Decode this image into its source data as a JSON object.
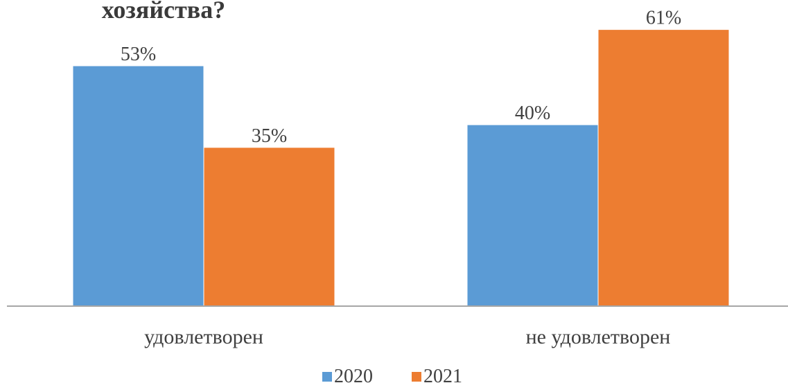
{
  "chart_data": {
    "type": "bar",
    "title": "хозяйства?",
    "categories": [
      "удовлетворен",
      "не удовлетворен"
    ],
    "series": [
      {
        "name": "2020",
        "values": [
          53,
          40
        ],
        "labels": [
          "53%",
          "40%"
        ],
        "color": "#5b9bd5"
      },
      {
        "name": "2021",
        "values": [
          35,
          61
        ],
        "labels": [
          "35%",
          "61%"
        ],
        "color": "#ed7d31"
      }
    ],
    "unit": "%",
    "ylim": [
      0,
      65
    ],
    "grid": false,
    "legend": "bottom",
    "axis_color": "#a6a6a6"
  }
}
